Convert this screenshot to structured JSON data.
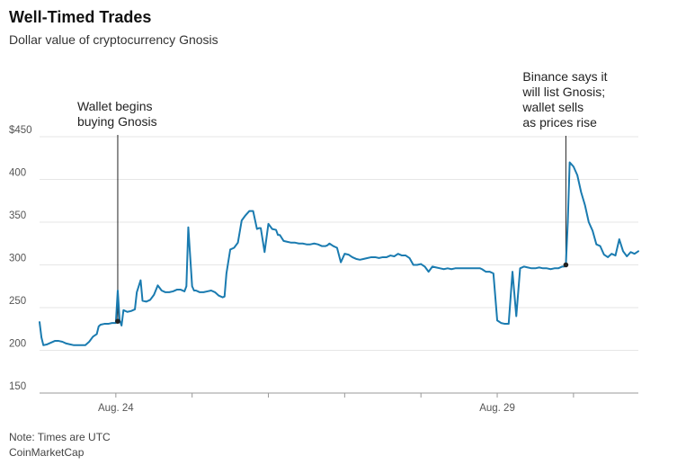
{
  "header": {
    "title": "Well-Timed Trades",
    "subtitle": "Dollar value of cryptocurrency Gnosis"
  },
  "footer": {
    "note": "Note: Times are UTC",
    "source": "CoinMarketCap"
  },
  "colors": {
    "line": "#1a7bb0",
    "grid": "#e6e6e6",
    "axis": "#999999",
    "annotation": "#222222"
  },
  "chart_data": {
    "type": "line",
    "title": "Well-Timed Trades",
    "subtitle": "Dollar value of cryptocurrency Gnosis",
    "xlabel": "",
    "ylabel": "",
    "ylim": [
      150,
      450
    ],
    "xlim": [
      0,
      157
    ],
    "grid": true,
    "y_ticks": [
      {
        "value": 450,
        "label": "$450"
      },
      {
        "value": 400,
        "label": "400"
      },
      {
        "value": 350,
        "label": "350"
      },
      {
        "value": 300,
        "label": "300"
      },
      {
        "value": 250,
        "label": "250"
      },
      {
        "value": 200,
        "label": "200"
      },
      {
        "value": 150,
        "label": "150"
      }
    ],
    "x_ticks": [
      {
        "x": 20,
        "label": "Aug. 24"
      },
      {
        "x": 40,
        "label": ""
      },
      {
        "x": 60,
        "label": ""
      },
      {
        "x": 80,
        "label": ""
      },
      {
        "x": 100,
        "label": ""
      },
      {
        "x": 120,
        "label": "Aug. 29"
      },
      {
        "x": 140,
        "label": ""
      }
    ],
    "series": [
      {
        "name": "",
        "x": [
          0,
          0.5,
          1,
          2,
          3,
          4,
          5,
          6,
          7,
          8,
          9,
          10,
          11,
          12,
          13,
          14,
          15,
          15.5,
          16,
          17,
          18,
          19,
          20,
          20.5,
          21,
          21.5,
          22,
          23,
          24,
          25,
          25.5,
          26,
          26.5,
          27,
          28,
          29,
          30,
          31,
          31.5,
          32,
          33,
          34,
          35,
          36,
          37,
          38,
          38.5,
          39,
          40,
          40.5,
          41,
          41.5,
          42,
          43,
          44,
          45,
          46,
          47,
          48,
          48.5,
          49,
          50,
          51,
          52,
          53,
          54,
          55,
          56,
          57,
          57.5,
          58,
          59,
          60,
          61,
          62,
          62.5,
          63,
          64,
          65,
          66,
          67,
          68,
          69,
          70,
          71,
          72,
          73,
          74,
          75,
          75.5,
          76,
          77,
          78,
          79,
          80,
          81,
          82,
          83,
          84,
          85,
          86,
          87,
          88,
          89,
          90,
          91,
          92,
          93,
          94,
          95,
          96,
          97,
          98,
          99,
          100,
          101,
          102,
          103,
          104,
          105,
          106,
          107,
          108,
          109,
          110,
          111,
          112,
          113,
          114,
          115,
          115.5,
          116,
          117,
          118,
          119,
          120,
          121,
          122,
          123,
          124,
          125,
          126,
          127,
          128,
          129,
          130,
          131,
          132,
          133,
          134,
          135,
          136,
          137,
          137.5,
          138,
          138.5,
          139,
          140,
          141,
          142,
          143,
          144,
          145,
          146,
          147,
          148,
          149,
          150,
          151,
          152,
          153,
          154,
          155,
          156,
          157
        ],
        "y": [
          233,
          215,
          206,
          207,
          209,
          211,
          211,
          210,
          208,
          207,
          206,
          206,
          206,
          206,
          210,
          216,
          219,
          228,
          230,
          231,
          231,
          232,
          232,
          270,
          235,
          229,
          247,
          245,
          246,
          248,
          268,
          275,
          282,
          258,
          257,
          259,
          265,
          276,
          273,
          270,
          268,
          268,
          269,
          271,
          271,
          269,
          275,
          344,
          275,
          270,
          270,
          269,
          268,
          268,
          269,
          270,
          268,
          264,
          262,
          263,
          290,
          318,
          320,
          326,
          352,
          358,
          363,
          363,
          342,
          343,
          343,
          315,
          348,
          342,
          341,
          335,
          335,
          328,
          327,
          326,
          326,
          325,
          325,
          324,
          324,
          325,
          324,
          322,
          322,
          323,
          325,
          322,
          320,
          303,
          313,
          312,
          309,
          307,
          306,
          307,
          308,
          309,
          309,
          308,
          309,
          309,
          311,
          310,
          313,
          311,
          311,
          308,
          300,
          300,
          301,
          298,
          292,
          298,
          297,
          296,
          295,
          296,
          295,
          296,
          296,
          296,
          296,
          296,
          296,
          296,
          296,
          295,
          292,
          292,
          290,
          235,
          232,
          231,
          231,
          292,
          240,
          296,
          298,
          297,
          296,
          296,
          297,
          296,
          296,
          295,
          296,
          296,
          298,
          298,
          300,
          350,
          420,
          415,
          405,
          385,
          370,
          350,
          340,
          324,
          322,
          312,
          309,
          313,
          311,
          330,
          316,
          310,
          315,
          313,
          316
        ]
      }
    ],
    "annotations": [
      {
        "lines": [
          "Wallet begins",
          "buying Gnosis"
        ],
        "x": 20.5,
        "y": 234
      },
      {
        "lines": [
          "Binance says it",
          "will list Gnosis;",
          "wallet sells",
          "as prices rise"
        ],
        "x": 138,
        "y": 300
      }
    ]
  }
}
